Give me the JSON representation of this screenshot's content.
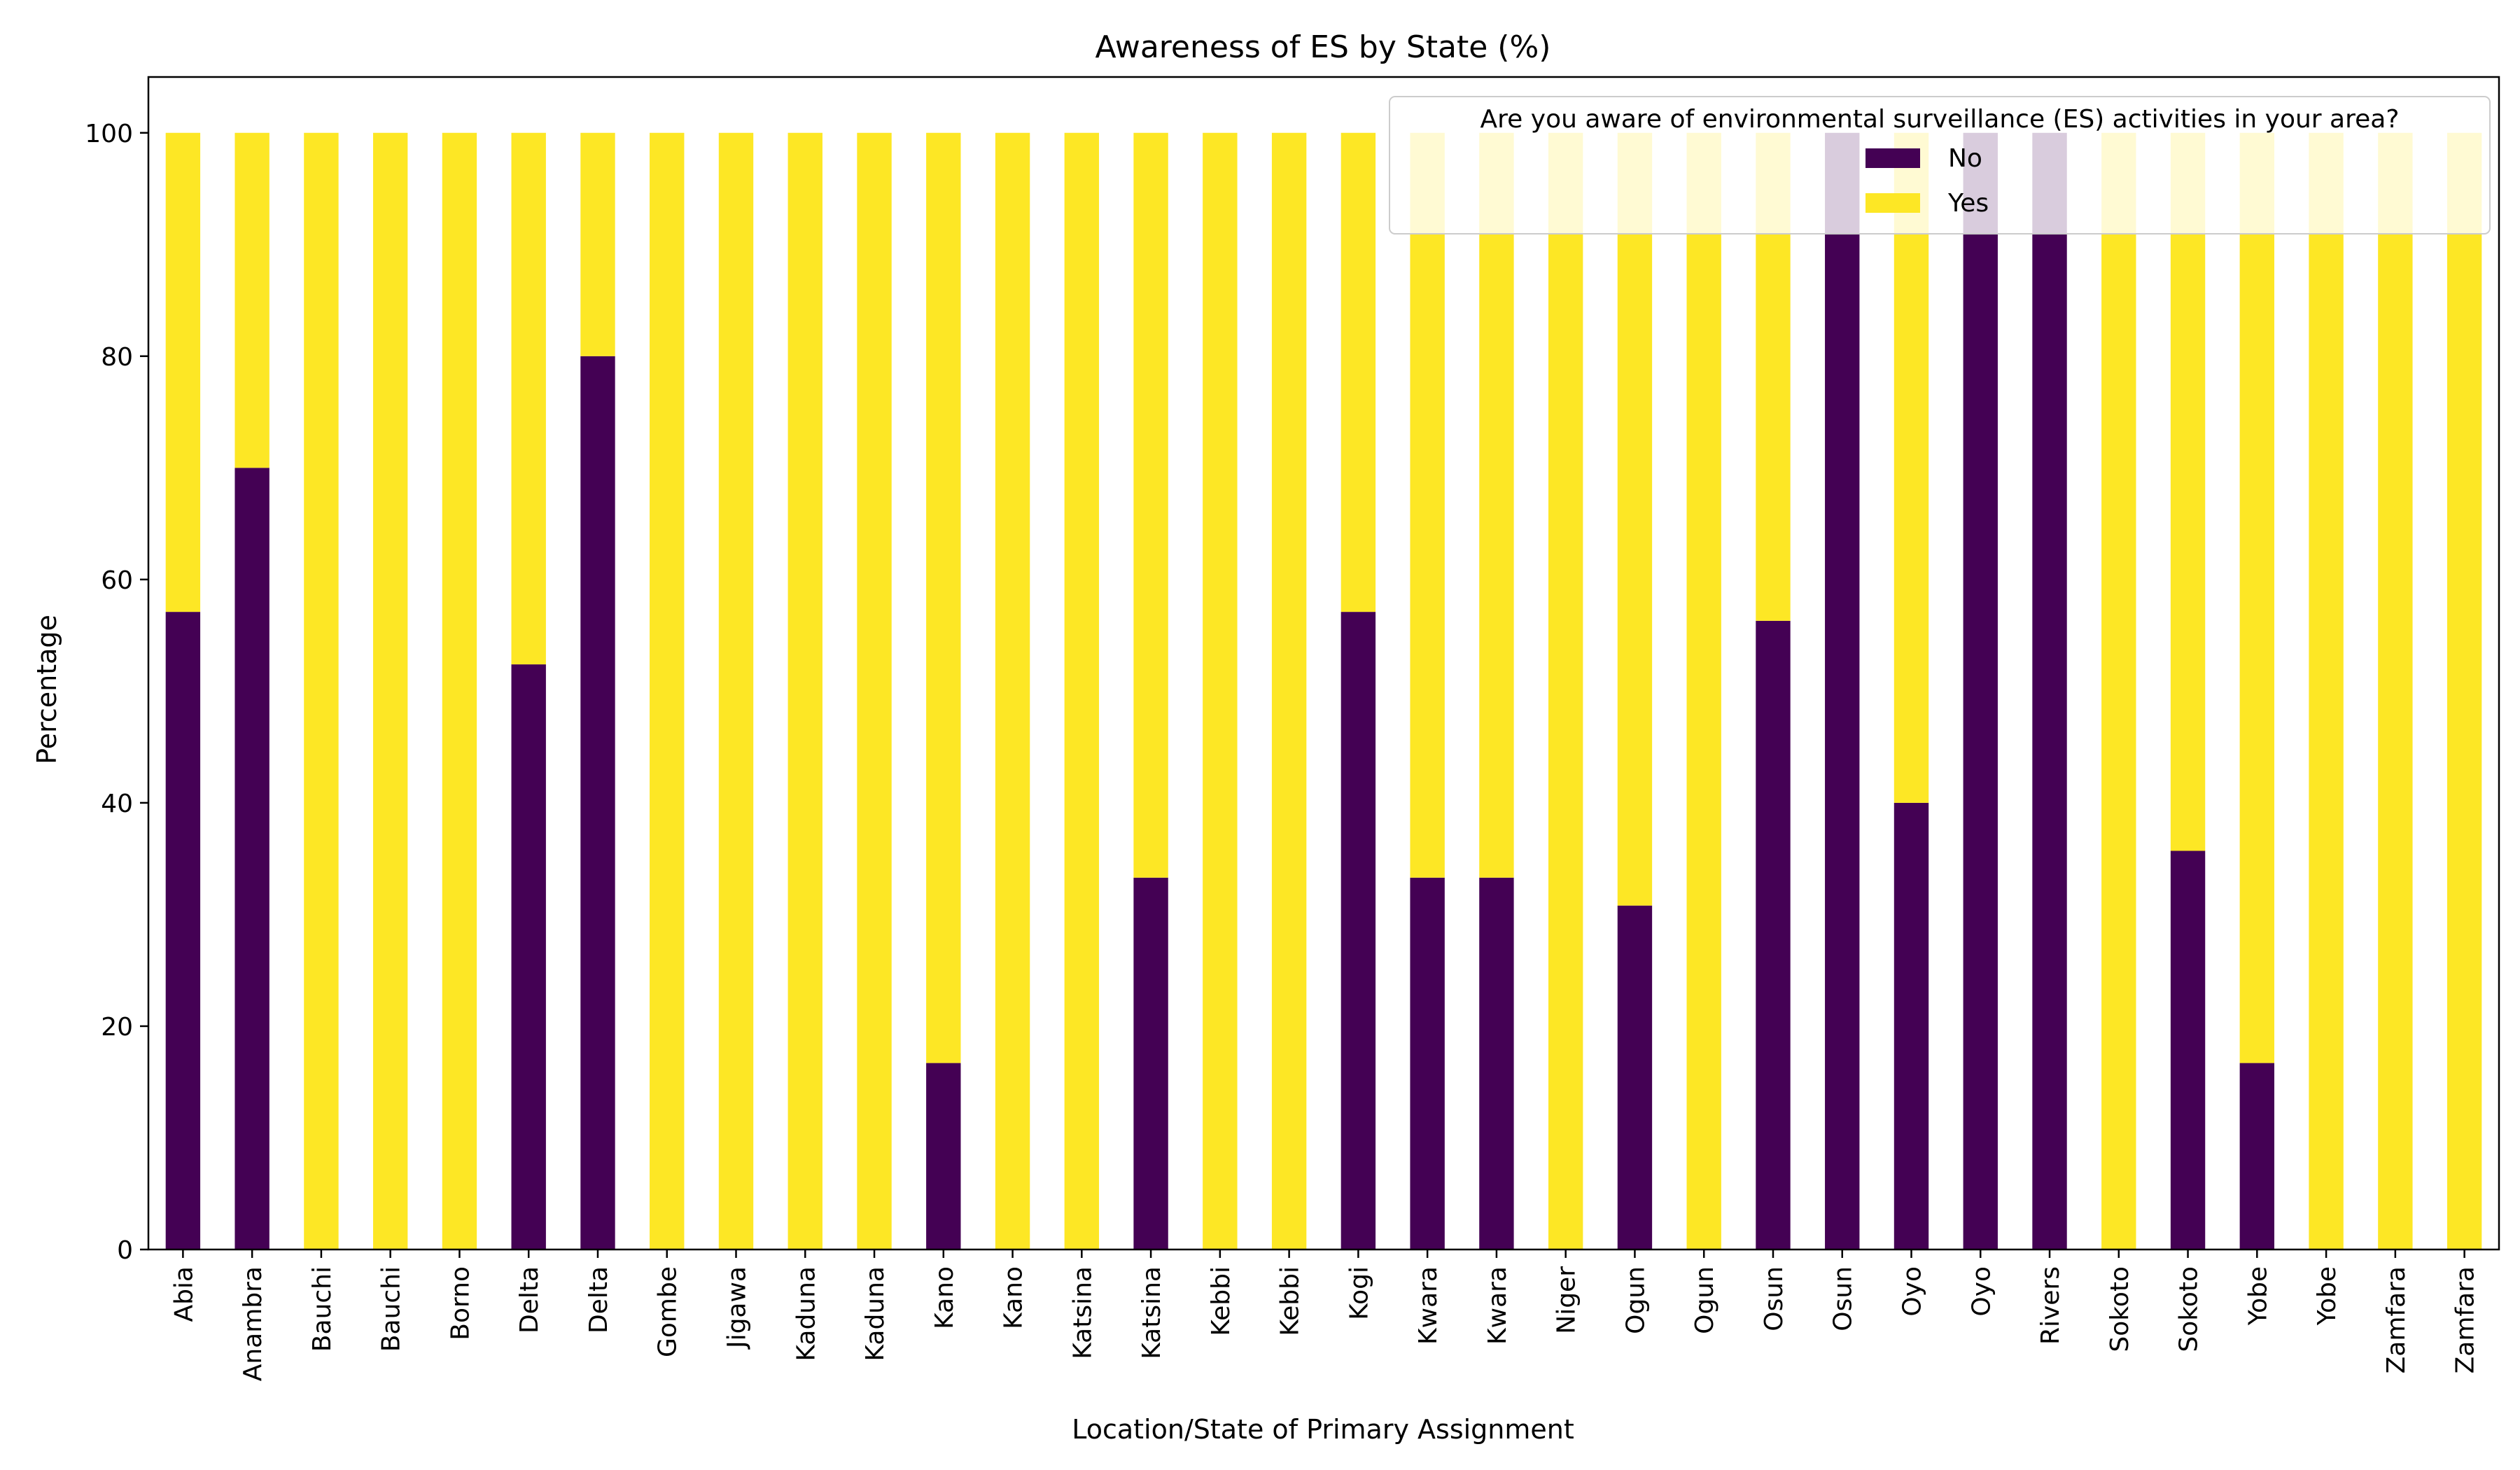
{
  "chart_data": {
    "type": "bar",
    "stacked": true,
    "title": "Awareness of ES by State (%)",
    "xlabel": "Location/State of Primary Assignment",
    "ylabel": "Percentage",
    "ylim": [
      0,
      105
    ],
    "yticks": [
      0,
      20,
      40,
      60,
      80,
      100
    ],
    "categories": [
      "Abia",
      "Anambra",
      "Bauchi",
      "Bauchi",
      "Borno",
      "Delta",
      "Delta",
      "Gombe",
      "Jigawa",
      "Kaduna",
      "Kaduna",
      "Kano",
      "Kano",
      "Katsina",
      "Katsina",
      "Kebbi",
      "Kebbi",
      "Kogi",
      "Kwara",
      "Kwara",
      "Niger",
      "Ogun",
      "Ogun",
      "Osun",
      "Osun",
      "Oyo",
      "Oyo",
      "Rivers",
      "Sokoto",
      "Sokoto",
      "Yobe",
      "Yobe",
      "Zamfara",
      "Zamfara"
    ],
    "series": [
      {
        "name": "No",
        "color": "#440154",
        "values": [
          57.1,
          70,
          0,
          0,
          0,
          52.4,
          80,
          0,
          0,
          0,
          0,
          16.7,
          0,
          0,
          33.3,
          0,
          0,
          57.1,
          33.3,
          33.3,
          0,
          30.8,
          0,
          56.3,
          100,
          40,
          100,
          100,
          0,
          35.7,
          16.7,
          0,
          0,
          0
        ]
      },
      {
        "name": "Yes",
        "color": "#fde725",
        "values": [
          42.9,
          30,
          100,
          100,
          100,
          47.6,
          20,
          100,
          100,
          100,
          100,
          83.3,
          100,
          100,
          66.7,
          100,
          100,
          42.9,
          66.7,
          66.7,
          100,
          69.2,
          100,
          43.7,
          0,
          60,
          0,
          0,
          100,
          64.3,
          83.3,
          100,
          100,
          100
        ]
      }
    ],
    "legend": {
      "title": "Are you aware of environmental surveillance (ES) activities in your area?",
      "placement": "top-right"
    },
    "grid": false
  }
}
